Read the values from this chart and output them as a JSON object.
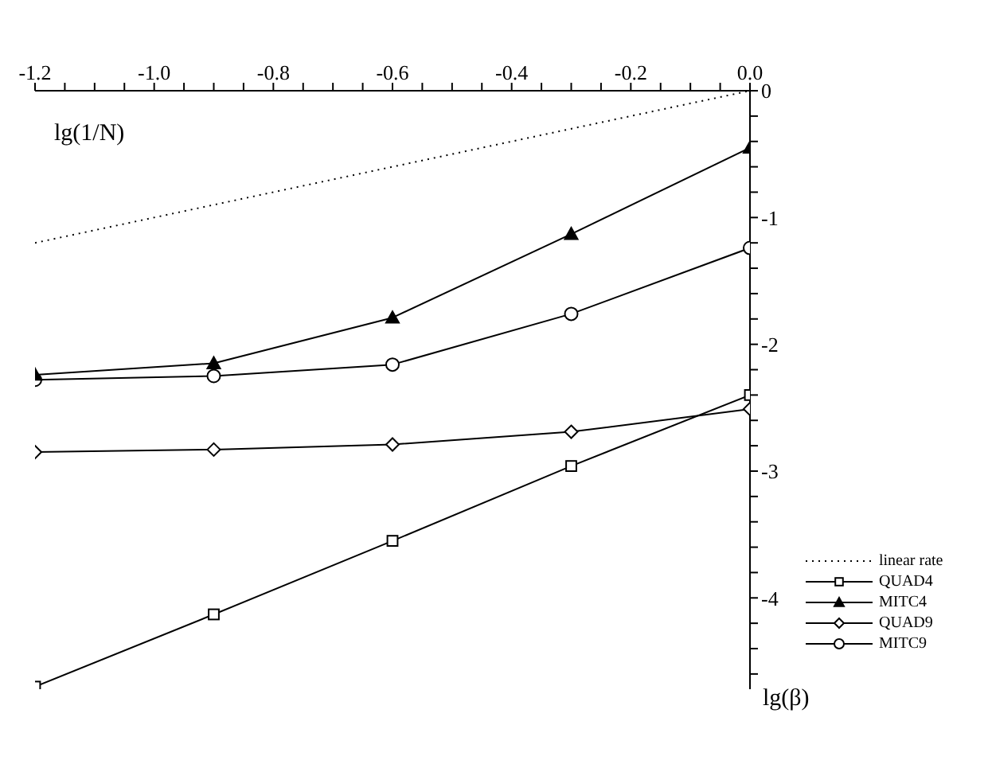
{
  "chart_data": {
    "type": "line",
    "xlabel": "lg(1/N)",
    "ylabel": "lg(β)",
    "x": [
      -1.2,
      -0.9,
      -0.6,
      -0.3,
      0.0
    ],
    "xlim": [
      -1.2,
      0.0
    ],
    "xticks": [
      -1.2,
      {
        "value": -1.15,
        "label": null
      },
      {
        "value": -1.1,
        "label": null
      },
      {
        "value": -1.05,
        "label": null
      },
      {
        "value": -1.0,
        "label": "-1.0"
      },
      {
        "value": -0.95,
        "label": null
      },
      {
        "value": -0.9,
        "label": null
      },
      {
        "value": -0.85,
        "label": null
      },
      -0.8,
      {
        "value": -0.75,
        "label": null
      },
      {
        "value": -0.7,
        "label": null
      },
      {
        "value": -0.65,
        "label": null
      },
      -0.6,
      {
        "value": -0.55,
        "label": null
      },
      {
        "value": -0.5,
        "label": null
      },
      {
        "value": -0.45,
        "label": null
      },
      -0.4,
      {
        "value": -0.35,
        "label": null
      },
      {
        "value": -0.3,
        "label": null
      },
      {
        "value": -0.25,
        "label": null
      },
      -0.2,
      {
        "value": -0.15,
        "label": null
      },
      {
        "value": -0.1,
        "label": null
      },
      {
        "value": -0.05,
        "label": null
      },
      {
        "value": 0,
        "label": "0.0"
      }
    ],
    "ylim": [
      -4.72,
      0
    ],
    "yticks": [
      0,
      {
        "value": -0.2,
        "label": null
      },
      {
        "value": -0.4,
        "label": null
      },
      {
        "value": -0.6,
        "label": null
      },
      {
        "value": -0.8,
        "label": null
      },
      -1,
      {
        "value": -1.2,
        "label": null
      },
      {
        "value": -1.4,
        "label": null
      },
      {
        "value": -1.6,
        "label": null
      },
      {
        "value": -1.8,
        "label": null
      },
      -2,
      {
        "value": -2.2,
        "label": null
      },
      {
        "value": -2.4,
        "label": null
      },
      {
        "value": -2.6,
        "label": null
      },
      {
        "value": -2.8,
        "label": null
      },
      -3,
      {
        "value": -3.2,
        "label": null
      },
      {
        "value": -3.4,
        "label": null
      },
      {
        "value": -3.6,
        "label": null
      },
      {
        "value": -3.8,
        "label": null
      },
      -4,
      {
        "value": -4.2,
        "label": null
      },
      {
        "value": -4.4,
        "label": null
      },
      {
        "value": -4.6,
        "label": null
      }
    ],
    "grid": false,
    "legend": "bottom right",
    "series": [
      {
        "name": "linear rate",
        "color": "#000000",
        "x": [
          -1.2,
          0.0
        ],
        "values": [
          -1.2,
          0.0
        ],
        "marker": "none",
        "line_style": "dotted"
      },
      {
        "name": "QUAD4",
        "color": "#000000",
        "values": [
          -4.7,
          -4.13,
          -3.55,
          -2.96,
          -2.4
        ],
        "marker": "square",
        "line_style": "solid"
      },
      {
        "name": "MITC4",
        "color": "#000000",
        "values": [
          -2.24,
          -2.15,
          -1.79,
          -1.13,
          -0.45
        ],
        "marker": "triangle",
        "line_style": "solid"
      },
      {
        "name": "QUAD9",
        "color": "#000000",
        "values": [
          -2.85,
          -2.83,
          -2.79,
          -2.69,
          -2.51
        ],
        "marker": "diamond",
        "line_style": "solid"
      },
      {
        "name": "MITC9",
        "color": "#000000",
        "values": [
          -2.28,
          -2.25,
          -2.16,
          -1.76,
          -1.24
        ],
        "marker": "circle",
        "line_style": "solid"
      }
    ]
  }
}
